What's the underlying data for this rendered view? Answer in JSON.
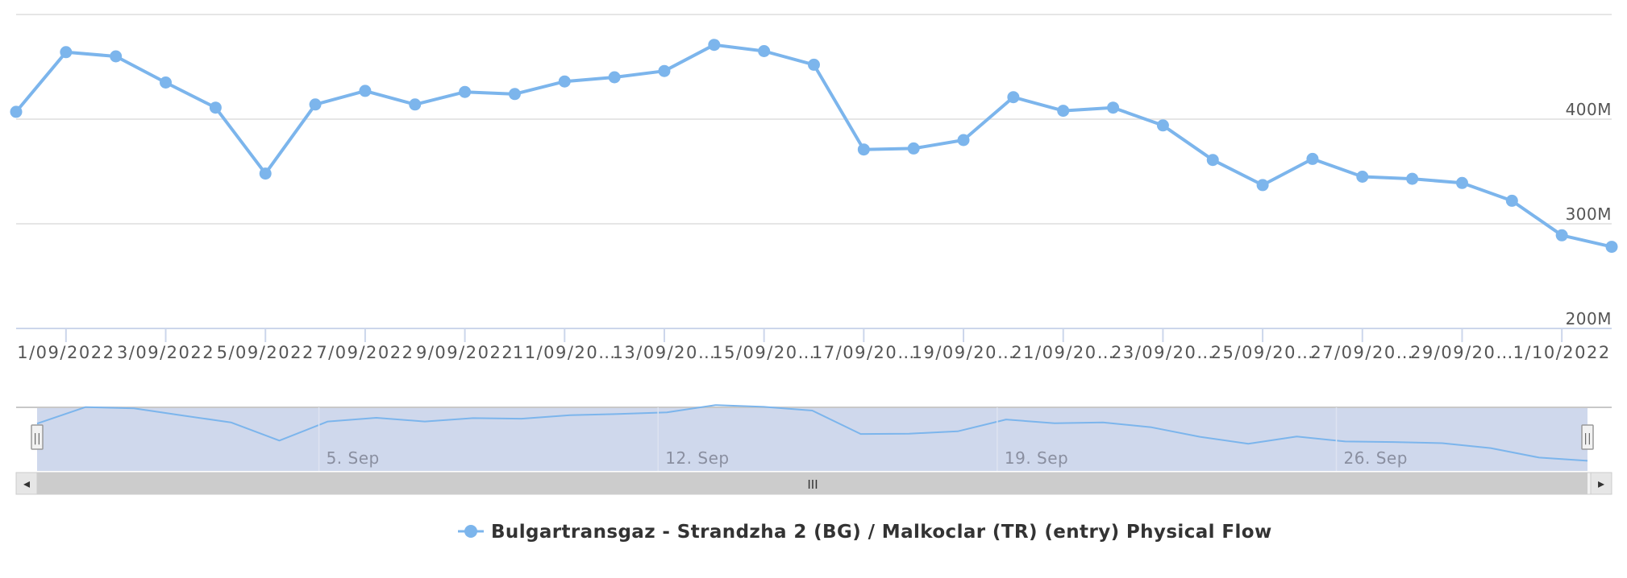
{
  "colors": {
    "series": "#7cb5ec",
    "grid": "#e6e6e6",
    "axis": "#ccd6eb",
    "navigator_mask": "#cfd8ec",
    "scrollbar_track": "#f2f2f2",
    "scrollbar_thumb": "#cccccc"
  },
  "chart_data": {
    "type": "line",
    "title": "",
    "xlabel": "",
    "ylabel": "",
    "ylim": [
      200,
      500
    ],
    "yticks": [
      {
        "value": 200,
        "label": "200M"
      },
      {
        "value": 300,
        "label": "300M"
      },
      {
        "value": 400,
        "label": "400M"
      }
    ],
    "grid": true,
    "legend_position": "bottom-center",
    "x_tick_labels": [
      "1/09/2022",
      "3/09/2022",
      "5/09/2022",
      "7/09/2022",
      "9/09/2022",
      "11/09/20…",
      "13/09/20…",
      "15/09/20…",
      "17/09/20…",
      "19/09/20…",
      "21/09/20…",
      "23/09/20…",
      "25/09/20…",
      "27/09/20…",
      "29/09/20…",
      "1/10/2022"
    ],
    "x": [
      "31/08/2022",
      "1/09/2022",
      "2/09/2022",
      "3/09/2022",
      "4/09/2022",
      "5/09/2022",
      "6/09/2022",
      "7/09/2022",
      "8/09/2022",
      "9/09/2022",
      "10/09/2022",
      "11/09/2022",
      "12/09/2022",
      "13/09/2022",
      "14/09/2022",
      "15/09/2022",
      "16/09/2022",
      "17/09/2022",
      "18/09/2022",
      "19/09/2022",
      "20/09/2022",
      "21/09/2022",
      "22/09/2022",
      "23/09/2022",
      "24/09/2022",
      "25/09/2022",
      "26/09/2022",
      "27/09/2022",
      "28/09/2022",
      "29/09/2022",
      "30/09/2022",
      "1/10/2022",
      "2/10/2022"
    ],
    "series": [
      {
        "name": "Bulgartransgaz - Strandzha 2 (BG) / Malkoclar (TR) (entry) Physical Flow",
        "values": [
          407,
          464,
          460,
          435,
          411,
          348,
          414,
          427,
          414,
          426,
          424,
          436,
          440,
          446,
          471,
          465,
          452,
          371,
          372,
          380,
          421,
          408,
          411,
          394,
          361,
          337,
          362,
          345,
          343,
          339,
          322,
          289,
          278
        ]
      }
    ]
  },
  "navigator": {
    "labels": [
      "5. Sep",
      "12. Sep",
      "19. Sep",
      "26. Sep"
    ],
    "scrollbar_left_arrow": "◂",
    "scrollbar_right_arrow": "▸",
    "scrollbar_grip": "III",
    "handle_grip": "||"
  },
  "legend": {
    "label": "Bulgartransgaz - Strandzha 2 (BG) / Malkoclar (TR) (entry) Physical Flow"
  }
}
